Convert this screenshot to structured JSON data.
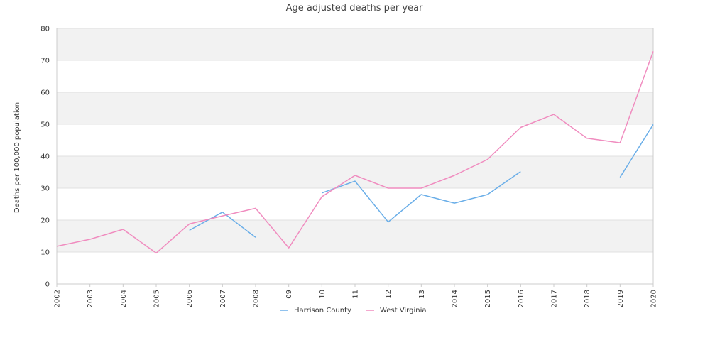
{
  "chart_data": {
    "type": "line",
    "title": "Age adjusted deaths per year",
    "xlabel": "",
    "ylabel": "Deaths per 100,000 population",
    "categories": [
      "2002",
      "2003",
      "2004",
      "2005",
      "2006",
      "2007",
      "2008",
      "09",
      "10",
      "11",
      "12",
      "13",
      "2014",
      "2015",
      "2016",
      "2017",
      "2018",
      "2019",
      "2020"
    ],
    "ylim": [
      0,
      80
    ],
    "yticks": [
      0,
      10,
      20,
      30,
      40,
      50,
      60,
      70,
      80
    ],
    "grid": "alternating horizontal bands",
    "legend_position": "bottom",
    "series": [
      {
        "name": "Harrison County",
        "color": "#6aaee8",
        "values": [
          null,
          null,
          null,
          null,
          16.8,
          22.5,
          14.6,
          null,
          28.5,
          32.2,
          19.4,
          28.0,
          25.3,
          28.0,
          35.2,
          null,
          null,
          33.4,
          49.9
        ]
      },
      {
        "name": "West Virginia",
        "color": "#f08cbf",
        "values": [
          11.8,
          14.0,
          17.1,
          9.7,
          18.8,
          21.3,
          23.7,
          11.3,
          27.3,
          34.0,
          30.0,
          30.0,
          34.0,
          39.0,
          49.0,
          53.1,
          45.6,
          44.2,
          72.8
        ]
      }
    ]
  },
  "colors": {
    "band": "#f2f2f2",
    "gridline": "#e0e0e0",
    "axis": "#cccccc"
  }
}
